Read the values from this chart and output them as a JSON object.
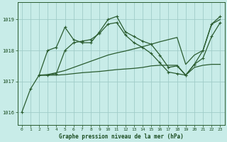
{
  "title": "Graphe pression niveau de la mer (hPa)",
  "bg_color": "#c8ece8",
  "grid_color": "#a0ccc8",
  "line_color": "#2a5c30",
  "text_color": "#1a4c20",
  "xlim": [
    -0.5,
    23.5
  ],
  "ylim": [
    1015.6,
    1019.55
  ],
  "yticks": [
    1016,
    1017,
    1018,
    1019
  ],
  "xticks": [
    0,
    1,
    2,
    3,
    4,
    5,
    6,
    7,
    8,
    9,
    10,
    11,
    12,
    13,
    14,
    15,
    16,
    17,
    18,
    19,
    20,
    21,
    22,
    23
  ],
  "series": [
    {
      "x": [
        0,
        1,
        2,
        3,
        4,
        5,
        6,
        7,
        8,
        9,
        10,
        11,
        12,
        13,
        14,
        15,
        16,
        17,
        18,
        19,
        20,
        21,
        22,
        23
      ],
      "y": [
        1016.0,
        1016.75,
        1017.2,
        1018.0,
        1018.1,
        1018.75,
        1018.35,
        1018.25,
        1018.25,
        1018.6,
        1019.0,
        1019.1,
        1018.6,
        1018.45,
        1018.3,
        1018.2,
        1017.85,
        1017.45,
        1017.5,
        1017.2,
        1017.55,
        1018.0,
        1018.85,
        1019.1
      ],
      "marker": "+"
    },
    {
      "x": [
        2,
        3,
        4,
        5,
        6,
        7,
        8,
        9,
        10,
        11,
        12,
        13,
        14,
        15,
        16,
        17,
        18,
        19,
        20,
        21,
        22,
        23
      ],
      "y": [
        1017.2,
        1017.2,
        1017.25,
        1018.0,
        1018.25,
        1018.3,
        1018.35,
        1018.55,
        1018.85,
        1018.9,
        1018.5,
        1018.25,
        1018.1,
        1017.9,
        1017.6,
        1017.3,
        1017.25,
        1017.2,
        1017.55,
        1017.75,
        1018.45,
        1018.9
      ],
      "marker": "+"
    },
    {
      "x": [
        2,
        3,
        4,
        5,
        6,
        7,
        8,
        9,
        10,
        11,
        12,
        13,
        14,
        15,
        16,
        17,
        18,
        19,
        20,
        21,
        22,
        23
      ],
      "y": [
        1017.2,
        1017.2,
        1017.2,
        1017.22,
        1017.25,
        1017.28,
        1017.3,
        1017.32,
        1017.35,
        1017.38,
        1017.4,
        1017.42,
        1017.45,
        1017.5,
        1017.52,
        1017.52,
        1017.52,
        1017.2,
        1017.45,
        1017.52,
        1017.55,
        1017.55
      ],
      "marker": null
    },
    {
      "x": [
        2,
        3,
        4,
        5,
        6,
        7,
        8,
        9,
        10,
        11,
        12,
        13,
        14,
        15,
        16,
        17,
        18,
        19,
        20,
        21,
        22,
        23
      ],
      "y": [
        1017.2,
        1017.22,
        1017.28,
        1017.35,
        1017.45,
        1017.55,
        1017.65,
        1017.75,
        1017.85,
        1017.92,
        1017.98,
        1018.05,
        1018.12,
        1018.2,
        1018.28,
        1018.35,
        1018.42,
        1017.55,
        1017.85,
        1018.0,
        1018.85,
        1019.0
      ],
      "marker": null
    }
  ]
}
